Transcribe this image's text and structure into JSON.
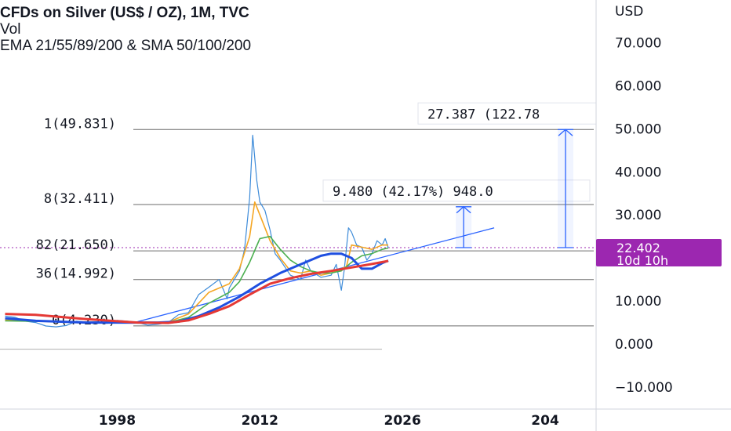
{
  "chart_data": {
    "type": "line",
    "title": "CFDs on Silver (US$ / OZ), 1M, TVC",
    "legend": {
      "line1": "CFDs on Silver (US$ / OZ), 1M, TVC",
      "line2": "Vol",
      "line3": "EMA 21/55/89/200 & SMA 50/100/200"
    },
    "y_axis": {
      "currency": "USD",
      "ticks": [
        "70.000",
        "60.000",
        "50.000",
        "40.000",
        "30.000",
        "20.000",
        "10.000",
        "0.000",
        "−10.000"
      ],
      "ylim": [
        -12,
        77
      ]
    },
    "x_axis": {
      "ticks": [
        "1998",
        "2012",
        "2026",
        "204"
      ],
      "xlim": [
        1986.5,
        2045
      ]
    },
    "current_price": {
      "value": "22.402",
      "countdown": "10d 10h",
      "raw": 22.402
    },
    "fib_levels": [
      {
        "ratio": "1",
        "label": "1(49.831)",
        "value": 49.831
      },
      {
        "ratio": "0.618",
        "label": "8(32.411)",
        "value": 32.411
      },
      {
        "ratio": "0.382",
        "label": "82(21.650)",
        "value": 21.65
      },
      {
        "ratio": "0.236",
        "label": "36(14.992)",
        "value": 14.992
      },
      {
        "ratio": "0",
        "label": "0(4.230)",
        "value": 4.23
      }
    ],
    "measures": [
      {
        "text": "9.480 (42.17%) 948.0",
        "from": 22.4,
        "to": 31.9,
        "x": 2032
      },
      {
        "text": "27.387 (122.78",
        "from": 22.4,
        "to": 49.83,
        "x": 2042
      }
    ],
    "trendline": {
      "points": [
        [
          2000,
          5.2
        ],
        [
          2035,
          27
        ]
      ]
    },
    "series": [
      {
        "name": "Silver",
        "color": "#3d8bd9",
        "x": [
          1987,
          1988,
          1989,
          1990,
          1991,
          1992,
          1993,
          1994,
          1995,
          1996,
          1997,
          1998,
          1999,
          2000,
          2001,
          2002,
          2003,
          2004,
          2005,
          2006,
          2007,
          2008,
          2008.8,
          2009,
          2010,
          2010.5,
          2011,
          2011.3,
          2011.7,
          2012,
          2012.5,
          2013,
          2013.5,
          2014,
          2015,
          2016,
          2016.5,
          2017,
          2018,
          2019,
          2019.5,
          2020,
          2020.3,
          2020.7,
          2021,
          2021.5,
          2022,
          2022.5,
          2023,
          2023.5,
          2024,
          2024.3,
          2024.6
        ],
        "values": [
          6.5,
          6.2,
          5.3,
          5.0,
          4.2,
          4.0,
          4.3,
          5.3,
          5.1,
          5.2,
          4.8,
          5.5,
          5.3,
          5.0,
          4.4,
          4.6,
          5.0,
          6.8,
          7.3,
          11.5,
          13.2,
          15.0,
          10.5,
          13.0,
          17.0,
          22.0,
          34.0,
          48.5,
          38.0,
          33.0,
          31.0,
          26.5,
          21.0,
          19.5,
          16.0,
          15.0,
          19.5,
          17.0,
          15.5,
          16.0,
          18.5,
          12.5,
          17.5,
          27.0,
          26.0,
          23.0,
          22.5,
          19.5,
          21.0,
          24.0,
          23.0,
          24.5,
          22.4
        ]
      },
      {
        "name": "EMA 21",
        "color": "#f5a623",
        "x": [
          1987,
          1995,
          2000,
          2003,
          2005,
          2007,
          2009,
          2010,
          2011,
          2011.5,
          2012,
          2013,
          2014,
          2015,
          2016,
          2017,
          2018,
          2019,
          2020,
          2020.5,
          2021,
          2022,
          2023,
          2024,
          2024.6
        ],
        "values": [
          5.6,
          5.1,
          4.9,
          5.1,
          7.0,
          12.0,
          14.0,
          17.5,
          25.0,
          33.0,
          30.0,
          24.0,
          20.0,
          17.0,
          16.5,
          17.0,
          16.0,
          16.5,
          17.5,
          18.0,
          23.0,
          22.5,
          22.0,
          23.0,
          23.0
        ]
      },
      {
        "name": "EMA 55",
        "color": "#4caf50",
        "x": [
          1987,
          1995,
          2000,
          2003,
          2005,
          2007,
          2009,
          2010,
          2011,
          2012,
          2013,
          2014,
          2015,
          2016,
          2017,
          2018,
          2019,
          2020,
          2021,
          2022,
          2023,
          2024,
          2024.6
        ],
        "values": [
          5.4,
          5.1,
          4.9,
          5.0,
          6.2,
          9.5,
          12.0,
          14.5,
          19.0,
          24.5,
          25.0,
          22.0,
          19.5,
          18.0,
          17.0,
          16.5,
          16.5,
          17.0,
          19.0,
          20.5,
          21.0,
          22.0,
          22.3
        ]
      },
      {
        "name": "SMA 200",
        "color": "#1f4fe0",
        "x": [
          1987,
          1990,
          1995,
          1998,
          2000,
          2002,
          2004,
          2006,
          2008,
          2010,
          2012,
          2014,
          2016,
          2018,
          2019,
          2020,
          2021,
          2022,
          2023,
          2024,
          2024.6
        ],
        "values": [
          6.0,
          5.4,
          5.0,
          5.0,
          5.0,
          5.0,
          5.2,
          6.5,
          8.5,
          11.0,
          14.0,
          16.5,
          18.5,
          20.5,
          21.0,
          21.0,
          20.0,
          17.5,
          17.5,
          18.8,
          19.4
        ]
      },
      {
        "name": "EMA 200",
        "color": "#e53935",
        "x": [
          1987,
          1990,
          1995,
          2000,
          2003,
          2005,
          2007,
          2009,
          2011,
          2013,
          2015,
          2017,
          2019,
          2021,
          2023,
          2024.6
        ],
        "values": [
          7.0,
          6.8,
          5.8,
          5.0,
          4.9,
          5.5,
          7.0,
          8.8,
          11.5,
          14.0,
          15.3,
          16.3,
          17.0,
          17.8,
          18.6,
          19.3
        ]
      }
    ]
  }
}
